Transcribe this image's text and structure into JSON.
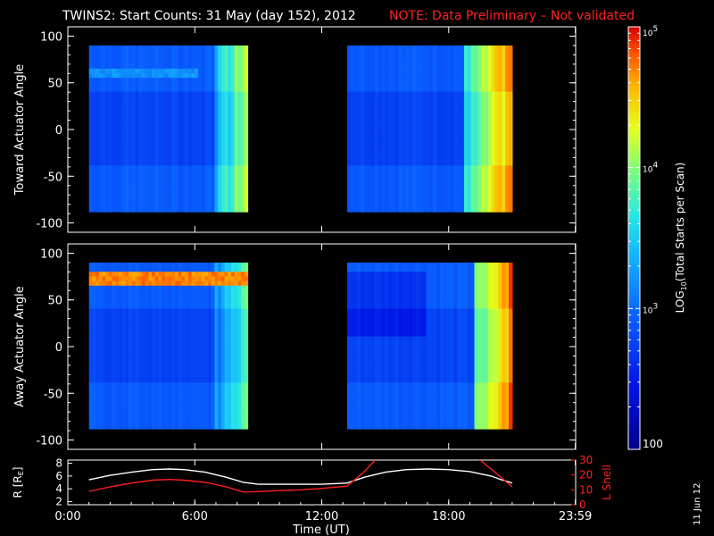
{
  "header": {
    "title": "TWINS2: Start Counts: 31 May (day 152), 2012",
    "note": "NOTE: Data Preliminary – Not validated",
    "note_color": "#ff2020"
  },
  "side_date": "11 Jun 12",
  "colors": {
    "background": "#000000",
    "axes": "#ffffff",
    "r_line": "#ffffff",
    "lshell_line": "#ff2020"
  },
  "chart_data": [
    {
      "type": "heatmap",
      "ylabel": "Toward Actuator Angle",
      "ylim": [
        -110,
        110
      ],
      "yticks": [
        100,
        50,
        0,
        -50,
        -100
      ],
      "xlim": [
        0,
        24
      ],
      "data_blocks": [
        {
          "x": [
            1.0,
            8.5
          ],
          "y": [
            -88,
            90
          ]
        },
        {
          "x": [
            13.2,
            21.0
          ],
          "y": [
            -88,
            90
          ]
        }
      ],
      "features": [
        {
          "name": "band",
          "x": [
            1.0,
            6.2
          ],
          "y": [
            55,
            65
          ],
          "log10": 3.2
        },
        {
          "name": "stripes",
          "x": [
            7.0,
            8.5
          ],
          "log10": [
            3.4,
            4.3
          ]
        },
        {
          "name": "stripes",
          "x": [
            18.8,
            21.0
          ],
          "log10": [
            3.6,
            4.8
          ]
        }
      ]
    },
    {
      "type": "heatmap",
      "ylabel": "Away Actuator Angle",
      "ylim": [
        -110,
        110
      ],
      "yticks": [
        100,
        50,
        0,
        -50,
        -100
      ],
      "xlim": [
        0,
        24
      ],
      "data_blocks": [
        {
          "x": [
            1.0,
            8.5
          ],
          "y": [
            -88,
            90
          ]
        },
        {
          "x": [
            13.2,
            21.0
          ],
          "y": [
            -88,
            90
          ]
        }
      ],
      "features": [
        {
          "name": "band",
          "x": [
            1.0,
            8.5
          ],
          "y": [
            65,
            80
          ],
          "log10": 4.7
        },
        {
          "name": "stripes",
          "x": [
            7.0,
            8.5
          ],
          "log10": [
            3.2,
            4.0
          ]
        },
        {
          "name": "stripes",
          "x": [
            19.2,
            21.0
          ],
          "log10": [
            3.8,
            4.9
          ]
        }
      ]
    },
    {
      "type": "line",
      "xlabel": "Time (UT)",
      "xlim": [
        0,
        24
      ],
      "xticks": [
        0,
        6,
        12,
        18,
        23.983
      ],
      "xtick_labels": [
        "0:00",
        "6:00",
        "12:00",
        "18:00",
        "23:59"
      ],
      "left_axis": {
        "label": "R [R",
        "label_sub": "E",
        "label_end": "]",
        "ylim": [
          1.5,
          8.5
        ],
        "ticks": [
          2,
          4,
          6,
          8
        ]
      },
      "right_axis": {
        "label": "L Shell",
        "ylim": [
          0,
          30
        ],
        "ticks": [
          0,
          10,
          20,
          30
        ],
        "tick_labels": [
          "0",
          "10",
          "20",
          "30"
        ]
      },
      "series": [
        {
          "axis": "left",
          "color": "#ffffff",
          "x": [
            1.0,
            2,
            3,
            4,
            4.8,
            5.5,
            6.5,
            7.5,
            8.3,
            9,
            10,
            11,
            12,
            13.2,
            14,
            15,
            16,
            17,
            18,
            19,
            20,
            20.5,
            21.0
          ],
          "y": [
            5.4,
            6.1,
            6.6,
            7.0,
            7.1,
            7.0,
            6.6,
            5.8,
            5.0,
            4.7,
            4.7,
            4.7,
            4.7,
            4.9,
            5.8,
            6.6,
            7.0,
            7.1,
            7.0,
            6.7,
            6.0,
            5.4,
            4.9
          ]
        },
        {
          "axis": "right",
          "color": "#ff2020",
          "x": [
            1.0,
            2,
            3,
            4,
            4.8,
            5.5,
            6.5,
            7.5,
            8.3,
            9,
            10,
            11,
            12,
            13.2,
            14.0,
            14.6
          ],
          "y": [
            9,
            12,
            14.5,
            16.5,
            17,
            16.5,
            15,
            12,
            8.5,
            8.8,
            9.5,
            10,
            11,
            12.5,
            22,
            31
          ]
        },
        {
          "axis": "right",
          "color": "#ff2020",
          "x": [
            19.4,
            20.0,
            20.5,
            21.0
          ],
          "y": [
            31,
            24,
            18,
            12
          ]
        }
      ]
    }
  ],
  "colorbar": {
    "label": "LOG",
    "label_sub": "10",
    "label_end": "(Total Starts per Scan)",
    "range_log10": [
      2,
      5
    ],
    "ticks": [
      {
        "base": "10",
        "exp": "5",
        "value": 5
      },
      {
        "base": "10",
        "exp": "4",
        "value": 4
      },
      {
        "base": "10",
        "exp": "3",
        "value": 3
      },
      {
        "base": "",
        "exp": "",
        "text": "100",
        "value": 2
      }
    ]
  }
}
